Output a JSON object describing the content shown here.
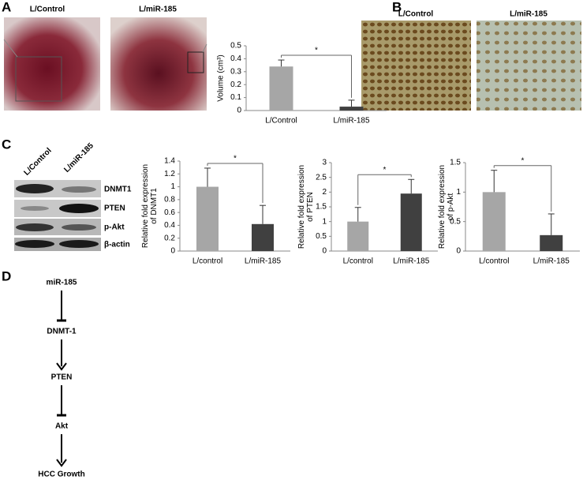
{
  "figure": {
    "panels": {
      "a": "A",
      "b": "B",
      "c": "C",
      "d": "D"
    },
    "photos_a": [
      "L/Control",
      "L/miR-185"
    ],
    "photos_b": [
      "L/Control",
      "L/miR-185"
    ],
    "blot": {
      "lanes": [
        "L/Control",
        "L/miR-185"
      ],
      "rows": [
        "DNMT1",
        "PTEN",
        "p-Akt",
        "β-actin"
      ]
    },
    "pathway": [
      "miR-185",
      "DNMT-1",
      "PTEN",
      "Akt",
      "HCC Growth"
    ]
  },
  "chart_data": [
    {
      "type": "bar",
      "ylabel": [
        "Volume (cm³)"
      ],
      "categories": [
        "L/Control",
        "L/miR-185"
      ],
      "values": [
        0.34,
        0.03
      ],
      "errors": [
        0.05,
        0.05
      ],
      "colors": [
        "#a6a6a6",
        "#404040"
      ],
      "ylim": [
        0,
        0.5
      ],
      "yticks": [
        0,
        0.1,
        0.2,
        0.3,
        0.4,
        0.5
      ],
      "annotation": "*"
    },
    {
      "type": "bar",
      "ylabel": [
        "Relative fold expression",
        "of DNMT1"
      ],
      "categories": [
        "L/control",
        "L/miR-185"
      ],
      "values": [
        1.0,
        0.42
      ],
      "errors": [
        0.29,
        0.29
      ],
      "colors": [
        "#a6a6a6",
        "#404040"
      ],
      "ylim": [
        0,
        1.4
      ],
      "yticks": [
        0,
        0.2,
        0.4,
        0.6,
        0.8,
        1,
        1.2,
        1.4
      ],
      "annotation": "*"
    },
    {
      "type": "bar",
      "ylabel": [
        "Relative fold expression",
        "of PTEN"
      ],
      "categories": [
        "L/control",
        "L/miR-185"
      ],
      "values": [
        1.0,
        1.95
      ],
      "errors": [
        0.48,
        0.48
      ],
      "colors": [
        "#a6a6a6",
        "#404040"
      ],
      "ylim": [
        0,
        3
      ],
      "yticks": [
        0,
        0.5,
        1,
        1.5,
        2,
        2.5,
        3
      ],
      "annotation": "*"
    },
    {
      "type": "bar",
      "ylabel": [
        "Relative fold expression",
        "of p-Akt"
      ],
      "categories": [
        "L/control",
        "L/miR-185"
      ],
      "values": [
        1.0,
        0.27
      ],
      "errors": [
        0.37,
        0.36
      ],
      "colors": [
        "#a6a6a6",
        "#404040"
      ],
      "ylim": [
        0,
        1.5
      ],
      "yticks": [
        0,
        0.5,
        1,
        1.5
      ],
      "annotation": "*"
    }
  ]
}
